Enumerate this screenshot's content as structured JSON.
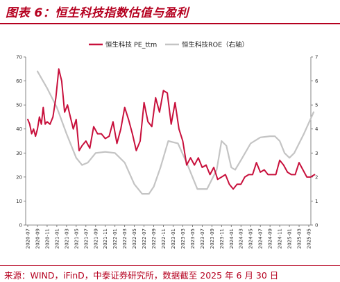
{
  "title": "图表 6：恒生科技指数估值与盈利",
  "source": "来源：WIND，iFinD，中泰证券研究所，数据截至 2025 年 6 月 30 日",
  "colors": {
    "pe": "#c8103c",
    "roe": "#c4c4c4",
    "brand": "#b5001f"
  },
  "chart_data": {
    "type": "line",
    "x_ticks": [
      "2020-07",
      "2020-09",
      "2020-11",
      "2021-01",
      "2021-03",
      "2021-05",
      "2021-07",
      "2021-09",
      "2021-11",
      "2022-01",
      "2022-03",
      "2022-05",
      "2022-07",
      "2022-09",
      "2022-11",
      "2023-01",
      "2023-03",
      "2023-05",
      "2023-07",
      "2023-09",
      "2023-11",
      "2024-01",
      "2024-03",
      "2024-05",
      "2024-07",
      "2024-09",
      "2024-11",
      "2025-01",
      "2025-03",
      "2025-05"
    ],
    "y_left": {
      "min": 0,
      "max": 70,
      "ticks": [
        0,
        10,
        20,
        30,
        40,
        50,
        60,
        70
      ]
    },
    "y_right": {
      "min": 0,
      "max": 7,
      "ticks": [
        0,
        1,
        2,
        3,
        4,
        5,
        6,
        7
      ]
    },
    "series": [
      {
        "name": "恒生科技 PE_ttm",
        "axis": "left",
        "x": [
          0,
          0.2,
          0.4,
          0.6,
          0.8,
          1.0,
          1.2,
          1.4,
          1.6,
          1.8,
          2.0,
          2.3,
          2.6,
          2.9,
          3.2,
          3.5,
          3.8,
          4.1,
          4.4,
          4.7,
          5.0,
          5.3,
          5.6,
          6.0,
          6.4,
          6.8,
          7.2,
          7.6,
          8.0,
          8.4,
          8.8,
          9.2,
          9.6,
          10.0,
          10.4,
          10.8,
          11.2,
          11.6,
          12.0,
          12.4,
          12.8,
          13.2,
          13.6,
          14.0,
          14.4,
          14.8,
          15.2,
          15.6,
          16.0,
          16.4,
          16.8,
          17.2,
          17.6,
          18.0,
          18.4,
          18.8,
          19.2,
          19.6,
          20.0,
          20.4,
          20.8,
          21.2,
          21.6,
          22.0,
          22.4,
          22.8,
          23.2,
          23.6,
          24.0,
          24.4,
          24.8,
          25.2,
          25.6,
          26.0,
          26.4,
          26.8,
          27.2,
          27.6,
          28.0,
          28.4,
          28.8,
          29.2,
          29.6
        ],
        "values": [
          44,
          42,
          38,
          40,
          37,
          40,
          45,
          42,
          49,
          42,
          43,
          42,
          45,
          53,
          65,
          60,
          47,
          50,
          45,
          40,
          44,
          31,
          33,
          35,
          32,
          41,
          38,
          38,
          36,
          37,
          43,
          34,
          40,
          49,
          44,
          38,
          31,
          35,
          51,
          43,
          41,
          53,
          47,
          56,
          55,
          42,
          51,
          40,
          35,
          25,
          28,
          25,
          28,
          24,
          25,
          21,
          24,
          19,
          20,
          21,
          17,
          15,
          17,
          17,
          20,
          21,
          21,
          26,
          22,
          23,
          21,
          21,
          21,
          27,
          25,
          22,
          21,
          21,
          26,
          23,
          20,
          20,
          21
        ]
      },
      {
        "name": "恒生科技ROE（右轴）",
        "axis": "right",
        "x": [
          1.0,
          2.0,
          3.0,
          4.0,
          5.0,
          5.6,
          6.2,
          7.0,
          8.0,
          9.0,
          10.0,
          11.0,
          11.8,
          12.5,
          13.0,
          13.7,
          14.5,
          15.5,
          16.5,
          17.5,
          18.5,
          19.5,
          20.0,
          20.5,
          21.0,
          21.4,
          22.0,
          23.0,
          24.0,
          25.0,
          25.5,
          26.0,
          26.5,
          27.0,
          27.5,
          28.5,
          29.5
        ],
        "values": [
          6.4,
          5.7,
          4.9,
          3.8,
          2.8,
          2.5,
          2.6,
          3.0,
          3.05,
          3.0,
          2.6,
          1.7,
          1.3,
          1.3,
          1.6,
          2.4,
          3.5,
          3.4,
          2.5,
          1.5,
          1.5,
          2.3,
          3.5,
          3.3,
          2.4,
          2.3,
          2.7,
          3.4,
          3.65,
          3.7,
          3.7,
          3.5,
          3.0,
          2.8,
          3.0,
          3.8,
          4.7
        ]
      }
    ]
  }
}
